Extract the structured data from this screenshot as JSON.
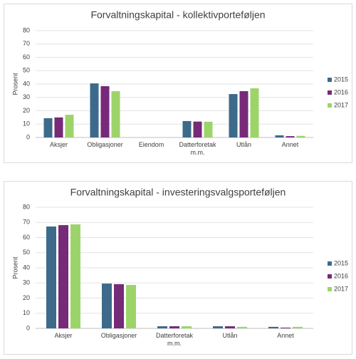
{
  "chart_data": [
    {
      "type": "bar",
      "title": "Forvaltningskapital - kollektivporteføljen",
      "y_label": "Prosent",
      "categories": [
        "Aksjer",
        "Obligasjoner",
        "Eiendom",
        "Datterforetak m.m.",
        "Utlån",
        "Annet"
      ],
      "series": [
        {
          "name": "2015",
          "color": "#3d6a8a",
          "values": [
            14.4,
            40.5,
            0,
            12.3,
            32.5,
            1.6
          ]
        },
        {
          "name": "2016",
          "color": "#762a78",
          "values": [
            15,
            38.4,
            0,
            11.9,
            34.7,
            1
          ]
        },
        {
          "name": "2017",
          "color": "#9dd46a",
          "values": [
            17,
            34.7,
            0,
            11.8,
            36.8,
            1.2
          ]
        }
      ],
      "ylim": [
        0,
        80
      ],
      "yticks": [
        0,
        10,
        20,
        30,
        40,
        50,
        60,
        70,
        80
      ],
      "grid": true,
      "legend": "right"
    },
    {
      "type": "bar",
      "title": "Forvaltningskapital - investeringsvalgsporteføljen",
      "y_label": "Prosent",
      "categories": [
        "Aksjer",
        "Obligasjoner",
        "Datterforetak m.m.",
        "Utlån",
        "Annet"
      ],
      "series": [
        {
          "name": "2015",
          "color": "#3d6a8a",
          "values": [
            67.3,
            29.6,
            1.4,
            1.4,
            1
          ]
        },
        {
          "name": "2016",
          "color": "#762a78",
          "values": [
            68.2,
            29.2,
            1.4,
            1.4,
            0.5
          ]
        },
        {
          "name": "2017",
          "color": "#9dd46a",
          "values": [
            68.7,
            28.7,
            1.4,
            1,
            1
          ]
        }
      ],
      "ylim": [
        0,
        80
      ],
      "yticks": [
        0,
        10,
        20,
        30,
        40,
        50,
        60,
        70,
        80
      ],
      "grid": true,
      "legend": "right"
    }
  ]
}
